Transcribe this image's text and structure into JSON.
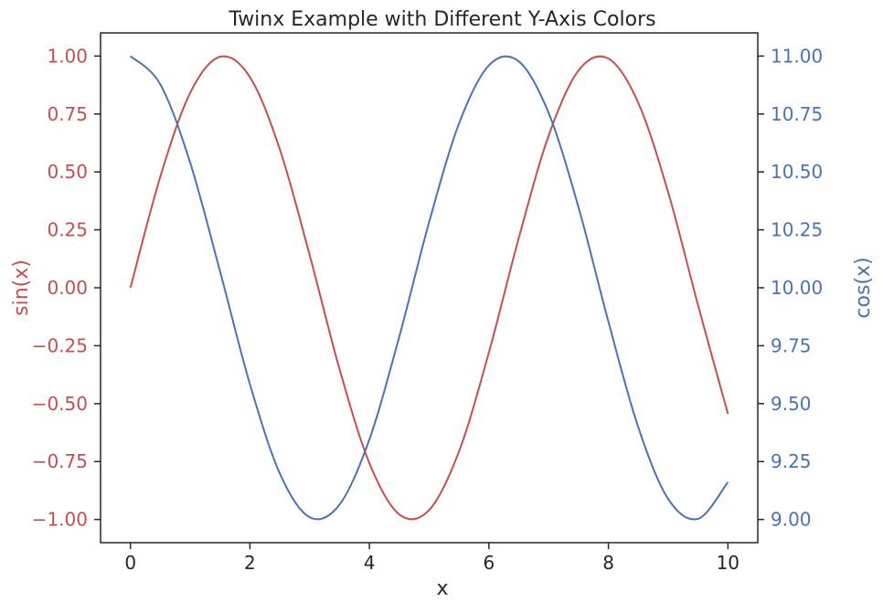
{
  "chart_data": {
    "type": "line",
    "title": "Twinx Example with Different Y-Axis Colors",
    "xlabel": "x",
    "ylabel_left": "sin(x)",
    "ylabel_right": "cos(x)",
    "xlim": [
      -0.5,
      10.5
    ],
    "ylim_left": [
      -1.1,
      1.1
    ],
    "ylim_right": [
      8.9,
      11.1
    ],
    "grid": false,
    "x_ticks": [
      0,
      2,
      4,
      6,
      8,
      10
    ],
    "x_tick_labels": [
      "0",
      "2",
      "4",
      "6",
      "8",
      "10"
    ],
    "y_left_ticks": [
      1.0,
      0.75,
      0.5,
      0.25,
      0.0,
      -0.25,
      -0.5,
      -0.75,
      -1.0
    ],
    "y_left_tick_labels": [
      "1.00",
      "0.75",
      "0.50",
      "0.25",
      "0.00",
      "−0.25",
      "−0.50",
      "−0.75",
      "−1.00"
    ],
    "y_right_ticks": [
      11.0,
      10.75,
      10.5,
      10.25,
      10.0,
      9.75,
      9.5,
      9.25,
      9.0
    ],
    "y_right_tick_labels": [
      "11.00",
      "10.75",
      "10.50",
      "10.25",
      "10.00",
      "9.75",
      "9.50",
      "9.25",
      "9.00"
    ],
    "x": [
      0,
      0.5,
      1,
      1.5,
      2,
      2.5,
      3,
      3.5,
      4,
      4.5,
      5,
      5.5,
      6,
      6.5,
      7,
      7.5,
      8,
      8.5,
      9,
      9.5,
      10
    ],
    "series": [
      {
        "axis": "left",
        "color": "#c44e52",
        "values": [
          0.0,
          0.479,
          0.841,
          0.997,
          0.909,
          0.598,
          0.141,
          -0.351,
          -0.757,
          -0.978,
          -0.959,
          -0.706,
          -0.279,
          0.215,
          0.657,
          0.938,
          0.989,
          0.798,
          0.412,
          -0.075,
          -0.544
        ]
      },
      {
        "axis": "right",
        "color": "#4c72b0",
        "values": [
          11.0,
          10.878,
          10.54,
          10.071,
          9.584,
          9.199,
          9.01,
          9.064,
          9.346,
          9.789,
          10.284,
          10.709,
          10.96,
          10.977,
          10.754,
          10.347,
          9.854,
          9.398,
          9.089,
          9.003,
          9.161
        ]
      }
    ]
  }
}
